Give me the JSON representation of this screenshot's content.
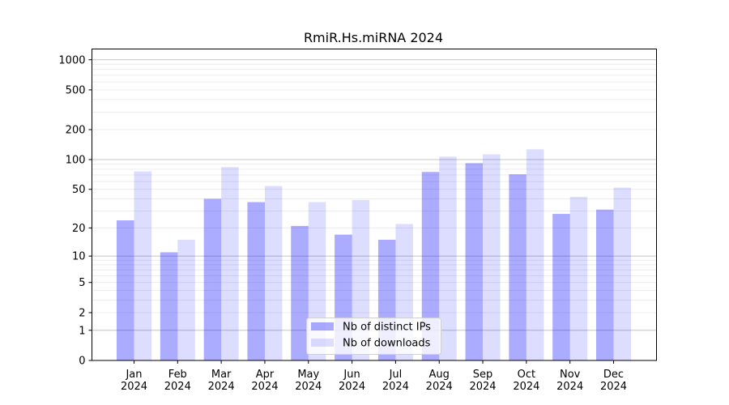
{
  "chart_data": {
    "type": "bar",
    "title": "RmiR.Hs.miRNA 2024",
    "xlabel": "",
    "ylabel": "",
    "yscale": "log(1+y)",
    "ylim": [
      0,
      1280
    ],
    "yticks": [
      0,
      1,
      2,
      5,
      10,
      20,
      50,
      100,
      200,
      500,
      1000
    ],
    "grid": true,
    "legend_position": "bottom-center",
    "categories": [
      "Jan\n2024",
      "Feb\n2024",
      "Mar\n2024",
      "Apr\n2024",
      "May\n2024",
      "Jun\n2024",
      "Jul\n2024",
      "Aug\n2024",
      "Sep\n2024",
      "Oct\n2024",
      "Nov\n2024",
      "Dec\n2024"
    ],
    "series": [
      {
        "name": "Nb of distinct IPs",
        "color": "#aaaaff",
        "values": [
          24,
          11,
          40,
          37,
          21,
          17,
          15,
          75,
          92,
          71,
          28,
          31
        ]
      },
      {
        "name": "Nb of downloads",
        "color": "#ddddff",
        "values": [
          76,
          15,
          84,
          54,
          37,
          39,
          22,
          107,
          113,
          127,
          42,
          52
        ]
      }
    ]
  }
}
